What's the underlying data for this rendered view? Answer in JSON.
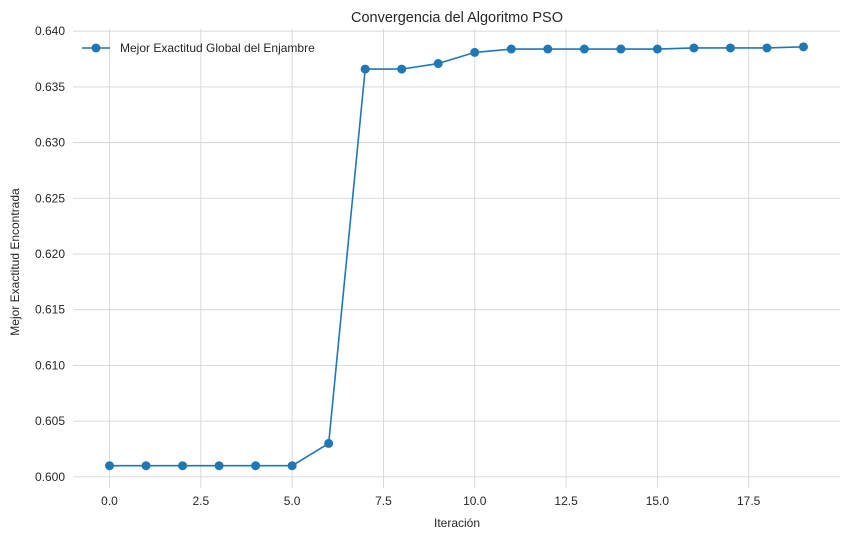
{
  "chart_data": {
    "type": "line",
    "title": "Convergencia del Algoritmo PSO",
    "xlabel": "Iteración",
    "ylabel": "Mejor Exactitud Encontrada",
    "xlim": [
      -1,
      20
    ],
    "ylim": [
      0.599,
      0.6402
    ],
    "xticks": [
      0.0,
      2.5,
      5.0,
      7.5,
      10.0,
      12.5,
      15.0,
      17.5
    ],
    "xtick_labels": [
      "0.0",
      "2.5",
      "5.0",
      "7.5",
      "10.0",
      "12.5",
      "15.0",
      "17.5"
    ],
    "yticks": [
      0.6,
      0.605,
      0.61,
      0.615,
      0.62,
      0.625,
      0.63,
      0.635,
      0.64
    ],
    "ytick_labels": [
      "0.600",
      "0.605",
      "0.610",
      "0.615",
      "0.620",
      "0.625",
      "0.630",
      "0.635",
      "0.640"
    ],
    "grid": true,
    "legend_position": "top-left",
    "series": [
      {
        "name": "Mejor Exactitud Global del Enjambre",
        "color": "#1f77b4",
        "marker": "circle",
        "x": [
          0,
          1,
          2,
          3,
          4,
          5,
          6,
          7,
          8,
          9,
          10,
          11,
          12,
          13,
          14,
          15,
          16,
          17,
          18,
          19
        ],
        "y": [
          0.601,
          0.601,
          0.601,
          0.601,
          0.601,
          0.601,
          0.603,
          0.6366,
          0.6366,
          0.6371,
          0.6381,
          0.6384,
          0.6384,
          0.6384,
          0.6384,
          0.6384,
          0.6385,
          0.6385,
          0.6385,
          0.6386
        ]
      }
    ]
  }
}
